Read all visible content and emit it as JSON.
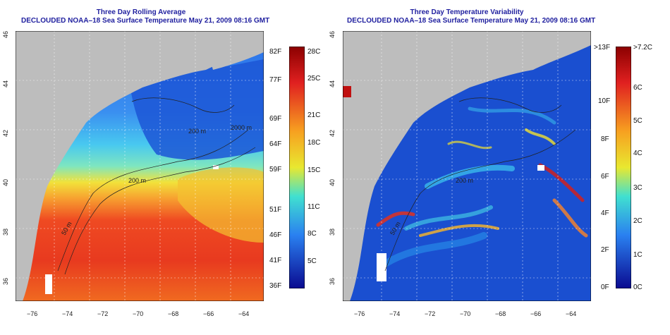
{
  "left": {
    "title": "Three Day Rolling Average",
    "subtitle": "DECLOUDED NOAA–18 Sea Surface Temperature May 21, 2009 08:16 GMT",
    "contours": [
      "2000 m",
      "200 m",
      "50 m",
      "200 m"
    ],
    "colorbar_f": [
      "82F",
      "77F",
      "69F",
      "64F",
      "59F",
      "51F",
      "46F",
      "41F",
      "36F"
    ],
    "colorbar_c": [
      "28C",
      "25C",
      "21C",
      "18C",
      "15C",
      "11C",
      "8C",
      "5C"
    ]
  },
  "right": {
    "title": "Three Day Temperature Variability",
    "subtitle": "DECLOUDED NOAA–18 Sea Surface Temperature May 21, 2009 08:16 GMT",
    "contours": [
      "200 m",
      "50 m"
    ],
    "colorbar_f": [
      ">13F",
      "10F",
      "8F",
      "6F",
      "4F",
      "2F",
      "0F"
    ],
    "colorbar_c": [
      ">7.2C",
      "6C",
      "5C",
      "4C",
      "3C",
      "2C",
      "1C",
      "0C"
    ]
  },
  "axes": {
    "lon": [
      "−76",
      "−74",
      "−72",
      "−70",
      "−68",
      "−66",
      "−64"
    ],
    "lat": [
      "36",
      "38",
      "40",
      "42",
      "44",
      "46"
    ]
  },
  "colors": {
    "title": "#1f1f9f",
    "land": "#bdbdbd"
  }
}
